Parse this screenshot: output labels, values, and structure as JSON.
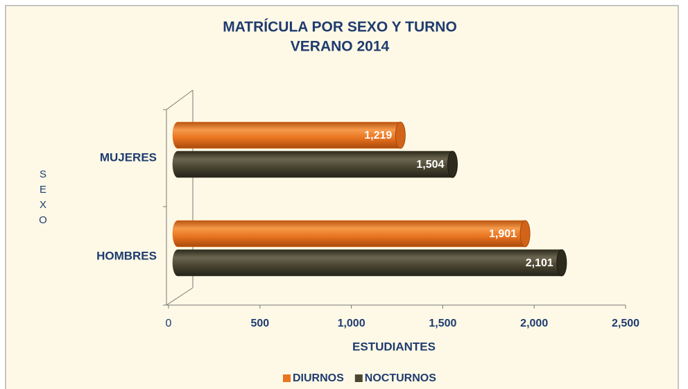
{
  "chart_data": {
    "type": "bar",
    "orientation": "horizontal",
    "title": "MATRÍCULA POR SEXO Y TURNO",
    "subtitle": "VERANO 2014",
    "y_label": "SEXO",
    "x_label": "ESTUDIANTES",
    "categories": [
      "MUJERES",
      "HOMBRES"
    ],
    "series": [
      {
        "name": "DIURNOS",
        "color": "#ea7420",
        "values": [
          1219,
          1901
        ],
        "value_labels": [
          "1,219",
          "1,901"
        ]
      },
      {
        "name": "NOCTURNOS",
        "color": "#4a4631",
        "values": [
          1504,
          2101
        ],
        "value_labels": [
          "1,504",
          "2,101"
        ]
      }
    ],
    "xlim": [
      0,
      2500
    ],
    "xticks": [
      0,
      500,
      {
        "value": 1000,
        "label": "1,000"
      },
      {
        "value": 1500,
        "label": "1,500"
      },
      {
        "value": 2000,
        "label": "2,000"
      },
      {
        "value": 2500,
        "label": "2,500"
      }
    ],
    "legend": "bottom"
  }
}
